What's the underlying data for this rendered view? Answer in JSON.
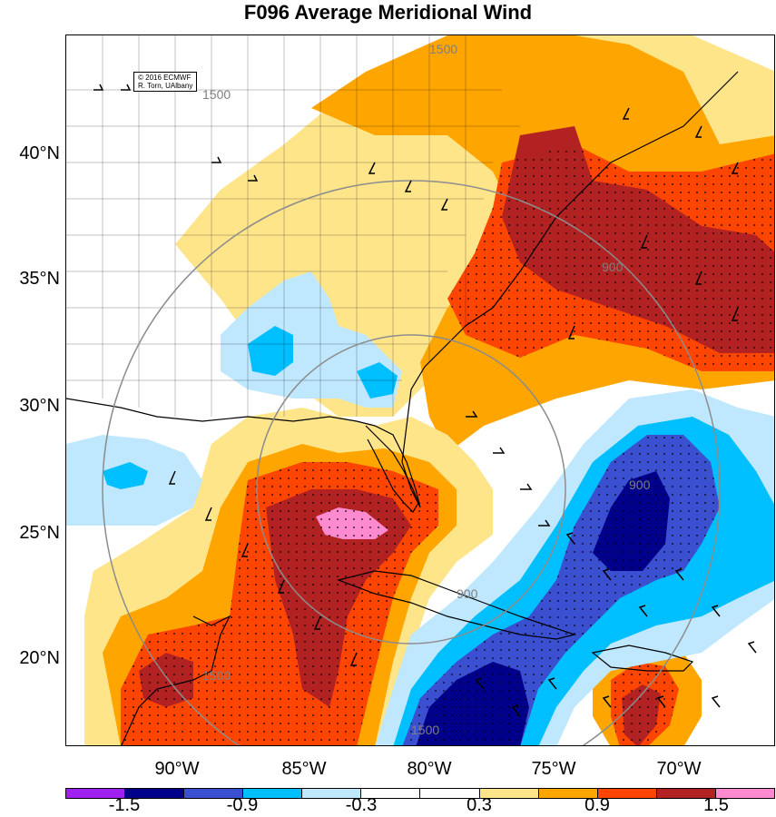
{
  "title": "F096 Average Meridional Wind",
  "credit": {
    "line1": "© 2016 ECMWF",
    "line2": "R. Torn, UAlbany"
  },
  "latitude_labels": [
    "40°N",
    "35°N",
    "30°N",
    "25°N",
    "20°N"
  ],
  "longitude_labels": [
    "90°W",
    "85°W",
    "80°W",
    "75°W",
    "70°W"
  ],
  "contour_labels": [
    "1500",
    "1500",
    "900",
    "900",
    "900",
    "1500",
    "1500"
  ],
  "colorbar": {
    "ticks": [
      "-1.5",
      "-0.9",
      "-0.3",
      "0.3",
      "0.9",
      "1.5"
    ],
    "colors": [
      "#a020f0",
      "#00008b",
      "#3b4fd1",
      "#00bfff",
      "#bfe8ff",
      "#ffffff",
      "#ffffff",
      "#ffe58a",
      "#ffa500",
      "#ff4500",
      "#b22222",
      "#ff8ad0"
    ]
  },
  "colors": {
    "strong_negative": "#00008b",
    "negative": "#3b4fd1",
    "weak_negative": "#00bfff",
    "slight_negative": "#bfe8ff",
    "slight_positive": "#ffe58a",
    "positive": "#ffa500",
    "strong_positive": "#ff4500",
    "very_strong_positive": "#b22222",
    "extreme_positive": "#ff8ad0"
  }
}
